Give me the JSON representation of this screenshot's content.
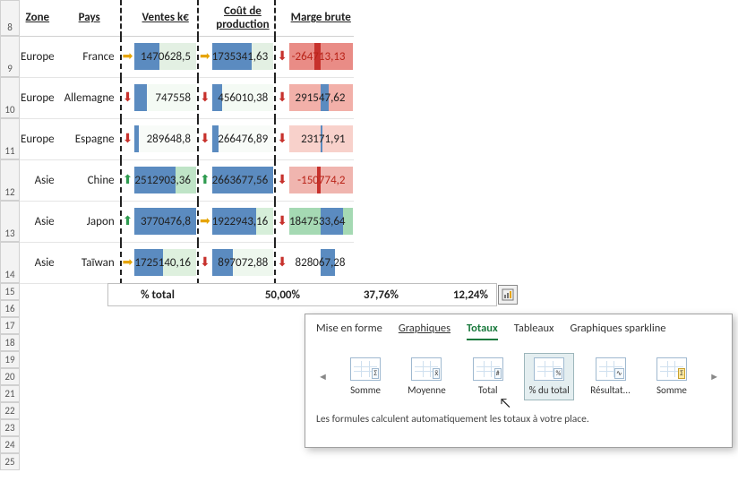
{
  "headers": {
    "zone": "Zone",
    "pays": "Pays",
    "ventes": "Ventes k€",
    "cout": "Coût de production",
    "marge": "Marge brute"
  },
  "row_numbers_first": 8,
  "data_row_numbers": [
    9,
    10,
    11,
    12,
    13,
    14
  ],
  "short_row_numbers": [
    15,
    16,
    17,
    18,
    19,
    20,
    21,
    22,
    23,
    24,
    25
  ],
  "rows": [
    {
      "zone": "Europe",
      "pays": "France",
      "v_icon": "right",
      "ventes": "1470628,5",
      "v_bar": 0.4,
      "v_bg": "#e3f0e3",
      "c_icon": "right",
      "cout": "1735341,63",
      "c_bar": 0.65,
      "c_bg": "#e3f0e3",
      "m_icon": "down",
      "marge": "-264713,13",
      "m_bg": "#e98c86",
      "m_neg": true,
      "m_bar_from": 0.5,
      "m_bar_to": 0.4
    },
    {
      "zone": "Europe",
      "pays": "Allemagne",
      "v_icon": "down",
      "ventes": "747558",
      "v_bar": 0.2,
      "v_bg": "#f4faf4",
      "c_icon": "down",
      "cout": "456010,38",
      "c_bar": 0.17,
      "c_bg": "#f4faf4",
      "m_icon": "down",
      "marge": "291547,62",
      "m_bg": "#f2b0a9",
      "m_neg": false,
      "m_bar_from": 0.5,
      "m_bar_to": 0.62
    },
    {
      "zone": "Europe",
      "pays": "Espagne",
      "v_icon": "down",
      "ventes": "289648,8",
      "v_bar": 0.07,
      "v_bg": "#f8fbf8",
      "c_icon": "down",
      "cout": "266476,89",
      "c_bar": 0.1,
      "c_bg": "#f8fbf8",
      "m_icon": "down",
      "marge": "23171,91",
      "m_bg": "#f8d1cb",
      "m_neg": false,
      "m_bar_from": 0.5,
      "m_bar_to": 0.52
    },
    {
      "zone": "Asie",
      "pays": "Chine",
      "v_icon": "up",
      "ventes": "2512903,36",
      "v_bar": 0.67,
      "v_bg": "#bfe4c7",
      "c_icon": "up",
      "cout": "2663677,56",
      "c_bar": 1.0,
      "c_bg": "#bfe4c7",
      "m_icon": "down",
      "marge": "-150774,2",
      "m_bg": "#f0b5af",
      "m_neg": true,
      "m_bar_from": 0.5,
      "m_bar_to": 0.44
    },
    {
      "zone": "Asie",
      "pays": "Japon",
      "v_icon": "up",
      "ventes": "3770476,8",
      "v_bar": 1.0,
      "v_bg": "#a5d9b3",
      "c_icon": "right",
      "cout": "1922943,16",
      "c_bar": 0.72,
      "c_bg": "#d6eed9",
      "m_icon": "down",
      "marge": "1847533,64",
      "m_bg": "#a5d9b3",
      "m_neg": false,
      "m_bar_from": 0.5,
      "m_bar_to": 0.85
    },
    {
      "zone": "Asie",
      "pays": "Taïwan",
      "v_icon": "right",
      "ventes": "1725140,16",
      "v_bar": 0.46,
      "v_bg": "#def0de",
      "c_icon": "down",
      "cout": "897072,88",
      "c_bar": 0.34,
      "c_bg": "#eef7ee",
      "m_icon": "down",
      "marge": "828067,28",
      "m_bg": "#ffffff",
      "m_neg": false,
      "m_bar_from": 0.5,
      "m_bar_to": 0.72
    }
  ],
  "totals": {
    "label": "% total",
    "ventes": "50,00%",
    "cout": "37,76%",
    "marge": "12,24%"
  },
  "panel": {
    "tabs": {
      "forme": "Mise en forme",
      "graph": "Graphiques",
      "totaux": "Totaux",
      "tableaux": "Tableaux",
      "spark": "Graphiques sparkline"
    },
    "items": {
      "somme": "Somme",
      "moyenne": "Moyenne",
      "total": "Total",
      "pct": "% du total",
      "resultat": "Résultat...",
      "somme2": "Somme"
    },
    "badges": {
      "somme": "Σ",
      "moyenne": "x̄",
      "total": "#",
      "pct": "%",
      "resultat": "∿",
      "somme2": "Σ"
    },
    "hint": "Les formules calculent automatiquement les totaux à votre place."
  },
  "colors": {
    "bar": "#5b8bc0",
    "mbar": "#c7312c",
    "accent": "#1a7a3d"
  }
}
